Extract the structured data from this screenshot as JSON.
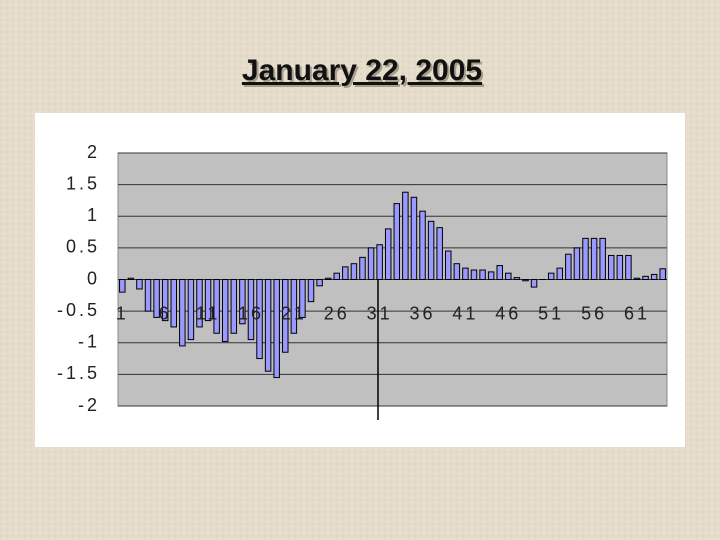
{
  "chart_data": {
    "type": "bar",
    "title": "January 22, 2005",
    "categories": [
      "1",
      null,
      null,
      null,
      null,
      "6",
      null,
      null,
      null,
      null,
      "11",
      null,
      null,
      null,
      null,
      "16",
      null,
      null,
      null,
      null,
      "21",
      null,
      null,
      null,
      null,
      "26",
      null,
      null,
      null,
      null,
      "31",
      null,
      null,
      null,
      null,
      "36",
      null,
      null,
      null,
      null,
      "41",
      null,
      null,
      null,
      null,
      "46",
      null,
      null,
      null,
      null,
      "51",
      null,
      null,
      null,
      null,
      "56",
      null,
      null,
      null,
      null,
      "61",
      null,
      null,
      null
    ],
    "values": [
      -0.2,
      0.02,
      -0.15,
      -0.5,
      -0.6,
      -0.65,
      -0.75,
      -1.05,
      -0.95,
      -0.75,
      -0.65,
      -0.85,
      -0.98,
      -0.85,
      -0.7,
      -0.95,
      -1.25,
      -1.45,
      -1.55,
      -1.15,
      -0.85,
      -0.6,
      -0.35,
      -0.1,
      0.02,
      0.1,
      0.2,
      0.25,
      0.35,
      0.5,
      0.55,
      0.8,
      1.2,
      1.38,
      1.3,
      1.08,
      0.92,
      0.82,
      0.45,
      0.25,
      0.18,
      0.15,
      0.15,
      0.12,
      0.22,
      0.1,
      0.03,
      -0.02,
      -0.12,
      0,
      0.1,
      0.18,
      0.4,
      0.5,
      0.65,
      0.65,
      0.65,
      0.38,
      0.38,
      0.38,
      0.02,
      0.05,
      0.08,
      0.17
    ],
    "color": "#9999ff",
    "ylim": [
      -2,
      2
    ],
    "yticks": [
      -2,
      -1.5,
      -1,
      -0.5,
      0,
      0.5,
      1,
      1.5,
      2
    ],
    "grid": true
  }
}
